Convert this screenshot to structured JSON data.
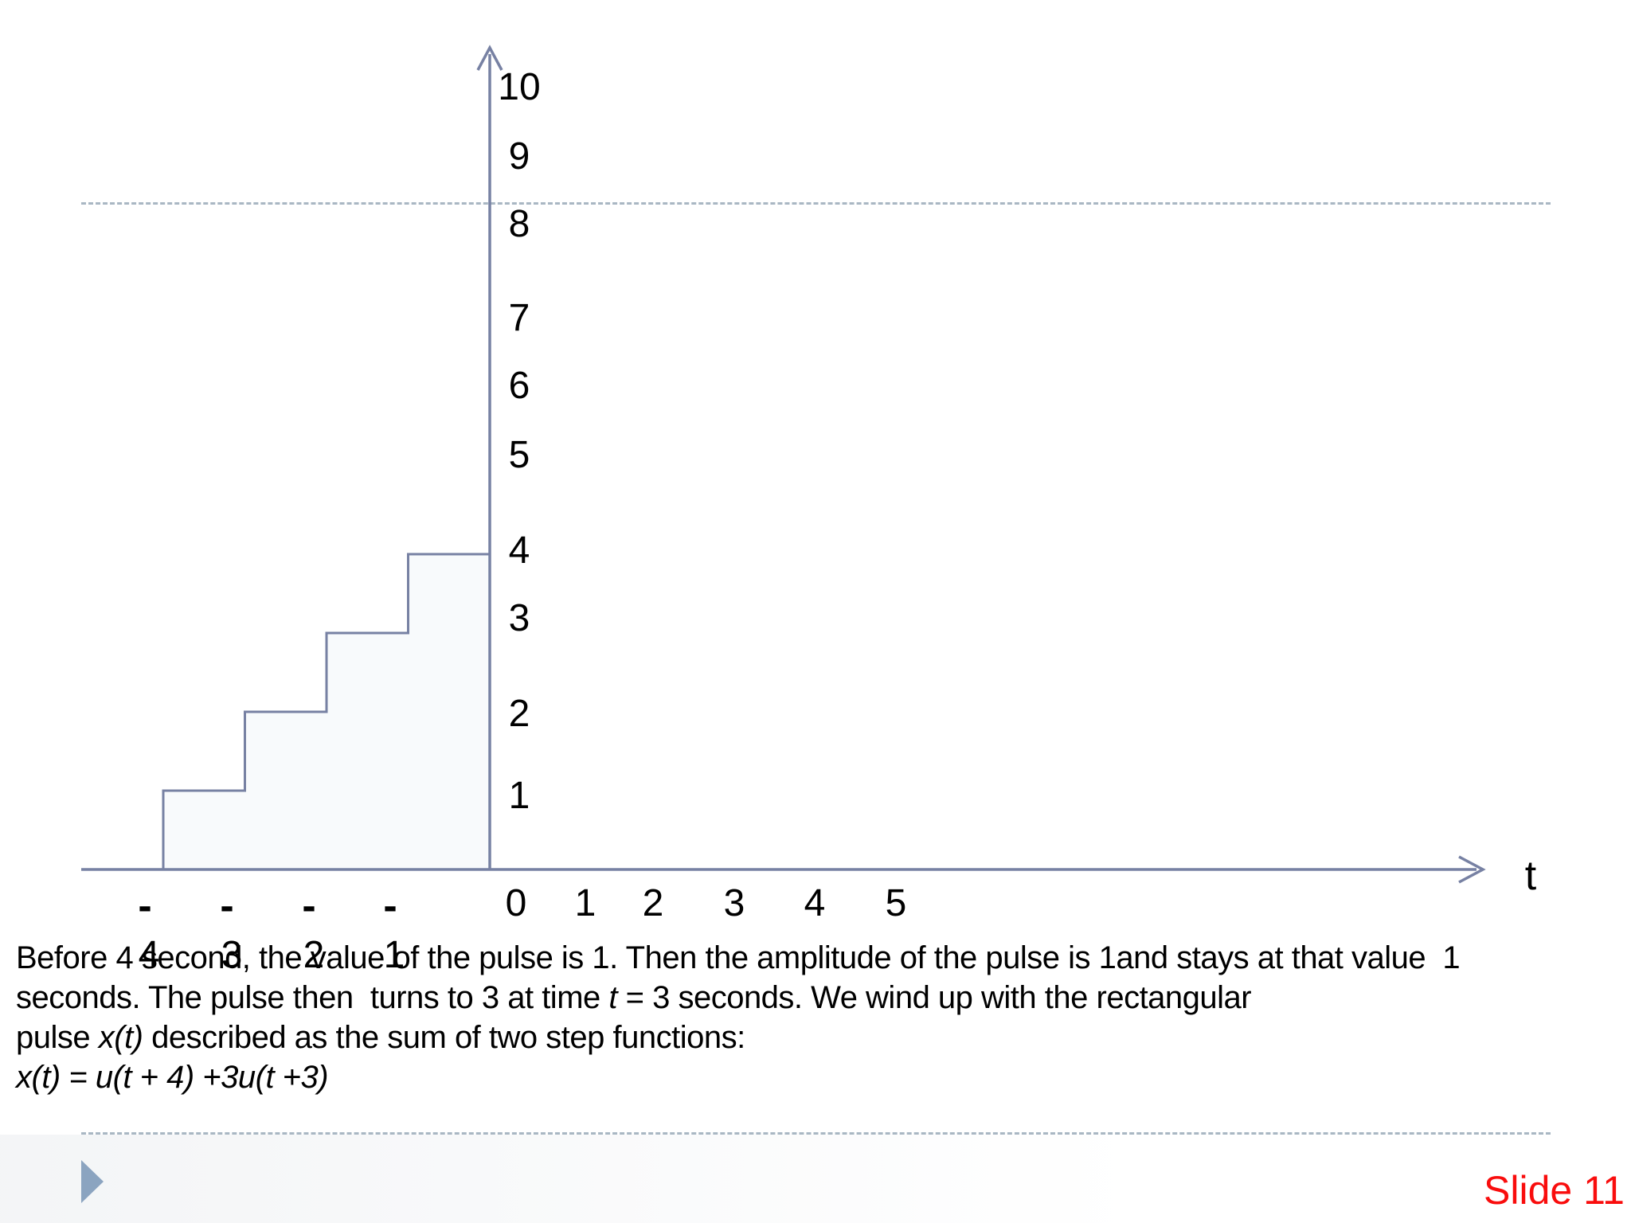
{
  "footer": {
    "slide_label": "Slide 11"
  },
  "chart": {
    "axis_title": "t",
    "y_axis_labels": [
      "10",
      "9",
      "8",
      "7",
      "6",
      "5",
      "4",
      "3",
      "2",
      "1"
    ],
    "x_axis_labels_positive": [
      "0",
      "1",
      "2",
      "3",
      "4",
      "5"
    ],
    "x_axis_labels_negative": [
      {
        "minus": "-",
        "digit": "4"
      },
      {
        "minus": "-",
        "digit": "3"
      },
      {
        "minus": "-",
        "digit": "2"
      },
      {
        "minus": "-",
        "digit": "1"
      }
    ]
  },
  "chart_data": {
    "type": "line",
    "title": "",
    "xlabel": "t",
    "ylabel": "",
    "x_ticks": [
      -4,
      -3,
      -2,
      -1,
      0,
      1,
      2,
      3,
      4,
      5
    ],
    "y_ticks": [
      1,
      2,
      3,
      4,
      5,
      6,
      7,
      8,
      9,
      10
    ],
    "xlim": [
      -5,
      12
    ],
    "ylim": [
      0,
      10.5
    ],
    "grid": false,
    "legend": "none",
    "series": [
      {
        "name": "x(t) staircase step function",
        "points": [
          [
            -4,
            0
          ],
          [
            -4,
            1
          ],
          [
            -3,
            1
          ],
          [
            -3,
            2
          ],
          [
            -2,
            2
          ],
          [
            -2,
            3
          ],
          [
            -1,
            3
          ],
          [
            -1,
            4
          ],
          [
            0,
            4
          ]
        ]
      }
    ]
  },
  "paragraph": {
    "lines": [
      [
        {
          "text": "Before 4 second, the value of the pulse is 1. Then the amplitude of the pulse is 1and stays at that value  1",
          "italic": false
        }
      ],
      [
        {
          "text": "seconds. The pulse then  turns to 3 at time ",
          "italic": false
        },
        {
          "text": "t",
          "italic": true
        },
        {
          "text": " = 3 seconds. We wind up with the rectangular",
          "italic": false
        }
      ],
      [
        {
          "text": "pulse ",
          "italic": false
        },
        {
          "text": "x(t)",
          "italic": true
        },
        {
          "text": " described as the sum of two step functions:",
          "italic": false
        }
      ],
      [
        {
          "text": "x(t) = u(t + 4) +3u(t +3)",
          "italic": true
        }
      ]
    ]
  },
  "colors": {
    "axis": "#7781a3",
    "dashed": "#a9b7c3",
    "triangle": "#8ba4c0",
    "slide_number": "#f90d0d",
    "step_fill": "#f8fafc",
    "text": "#000000"
  }
}
